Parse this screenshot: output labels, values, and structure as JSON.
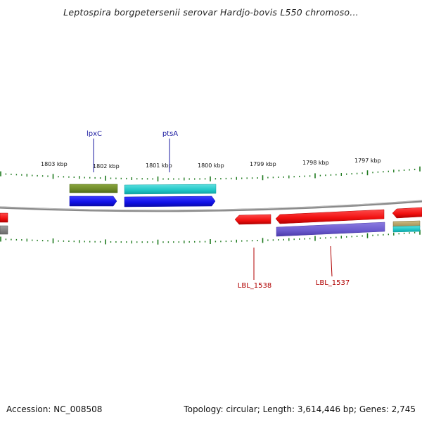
{
  "title": "Leptospira borgpetersenii serovar Hardjo-bovis L550 chromoso...",
  "ruler": {
    "ticks": [
      "1803 kbp",
      "1802 kbp",
      "1801 kbp",
      "1800 kbp",
      "1799 kbp",
      "1798 kbp",
      "1797 kbp"
    ]
  },
  "genes": {
    "top": [
      "lpxC",
      "ptsA"
    ],
    "bottom": [
      "LBL_1538",
      "LBL_1537"
    ]
  },
  "colors": {
    "tick": "#1e7a1e",
    "backbone": "#8a8a8a",
    "top_label": "#1a1aa0",
    "bottom_label": "#b00000",
    "olive": "#6e8a2a",
    "cyan": "#1fc6c6",
    "blue": "#1a1ae6",
    "red": "#f01010",
    "purple": "#6a5acd",
    "tan": "#b8a56a"
  },
  "footer": {
    "accession": "Accession: NC_008508",
    "summary": "Topology: circular; Length: 3,614,446 bp; Genes: 2,745"
  }
}
